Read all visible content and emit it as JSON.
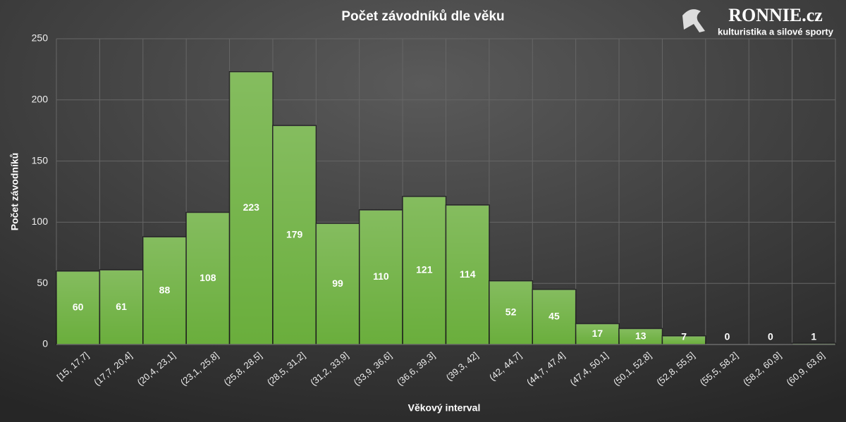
{
  "chart_data": {
    "type": "bar",
    "title": "Počet závodníků dle věku",
    "x_label": "Věkový interval",
    "y_label": "Počet závodníků",
    "categories": [
      "[15, 17,7]",
      "(17,7, 20,4]",
      "(20,4, 23,1]",
      "(23,1, 25,8]",
      "(25,8, 28,5]",
      "(28,5, 31,2]",
      "(31,2, 33,9]",
      "(33,9, 36,6]",
      "(36,6, 39,3]",
      "(39,3, 42]",
      "(42, 44,7]",
      "(44,7, 47,4]",
      "(47,4, 50,1]",
      "(50,1, 52,8]",
      "(52,8, 55,5]",
      "(55,5, 58,2]",
      "(58,2, 60,9]",
      "(60,9, 63,6]"
    ],
    "values": [
      60,
      61,
      88,
      108,
      223,
      179,
      99,
      110,
      121,
      114,
      52,
      45,
      17,
      13,
      7,
      0,
      0,
      1
    ],
    "color": "#6aae3c",
    "ylim": [
      0,
      250
    ],
    "yticks": [
      0,
      50,
      100,
      150,
      200,
      250
    ],
    "grid": true
  },
  "logo": {
    "name": "RONNIE.cz",
    "tagline": "kulturistika a silové sporty"
  }
}
